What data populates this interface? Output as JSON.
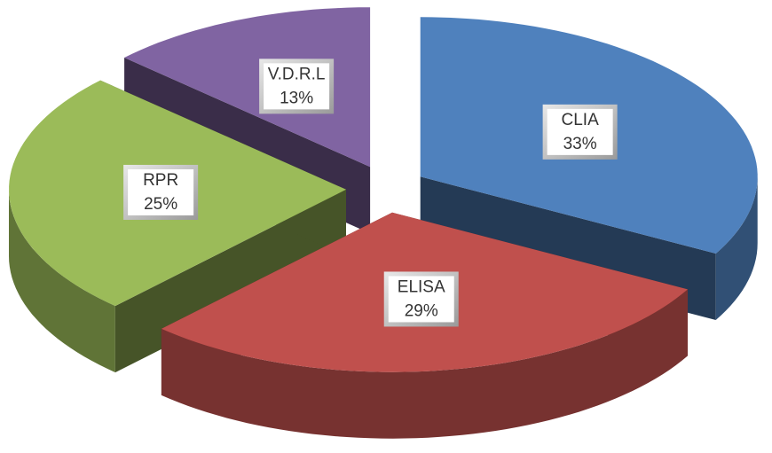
{
  "chart_data": {
    "type": "pie",
    "categories": [
      "CLIA",
      "ELISA",
      "RPR",
      "V.D.R.L"
    ],
    "values": [
      33,
      29,
      25,
      13
    ],
    "value_labels": [
      "33%",
      "29%",
      "25%",
      "13%"
    ],
    "colors": [
      "#4f81bd",
      "#c0504d",
      "#9bbb59",
      "#8064a2"
    ]
  }
}
